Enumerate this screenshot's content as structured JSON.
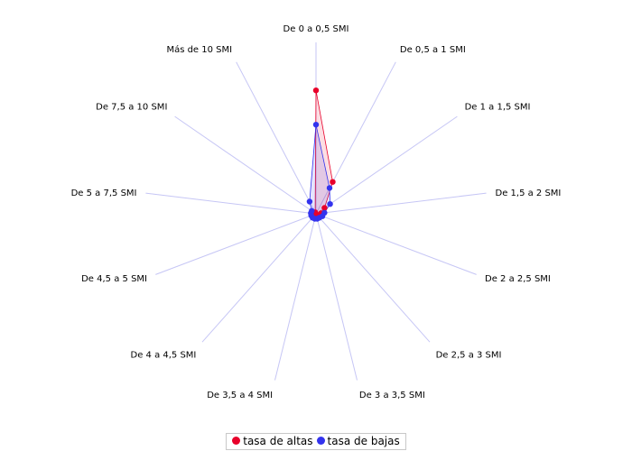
{
  "chart_data": {
    "type": "radar",
    "title": "",
    "categories": [
      "De 0 a 0,5 SMI",
      "De 0,5 a 1 SMI",
      "De 1 a 1,5 SMI",
      "De 1,5 a 2 SMI",
      "De 2 a 2,5 SMI",
      "De 2,5 a 3 SMI",
      "De 3 a 3,5 SMI",
      "De 3,5 a 4 SMI",
      "De 4 a 4,5 SMI",
      "De 4,5 a 5 SMI",
      "De 5 a 7,5 SMI",
      "De 7,5 a 10 SMI",
      "Más de 10 SMI"
    ],
    "series": [
      {
        "name": "tasa de altas",
        "color": "#e8002a",
        "values": [
          0.72,
          0.21,
          0.06,
          0.03,
          0.02,
          0.015,
          0.01,
          0.01,
          0.01,
          0.01,
          0.01,
          0.01,
          0.01
        ]
      },
      {
        "name": "tasa de bajas",
        "color": "#3333ee",
        "values": [
          0.52,
          0.17,
          0.1,
          0.05,
          0.04,
          0.03,
          0.03,
          0.03,
          0.03,
          0.03,
          0.03,
          0.03,
          0.08
        ]
      }
    ],
    "max": 1.0,
    "grid": true,
    "legend": "bottom"
  }
}
